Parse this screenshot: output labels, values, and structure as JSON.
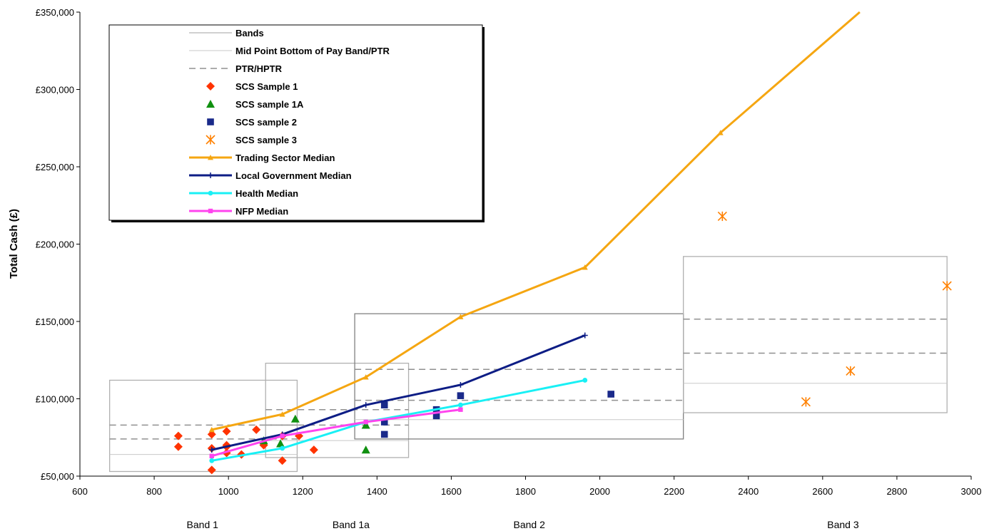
{
  "chart_data": {
    "type": "scatter",
    "ylabel": "Total Cash (£)",
    "xlabel": "",
    "xlim": [
      600,
      3000
    ],
    "ylim": [
      50000,
      350000
    ],
    "x_ticks": [
      600,
      800,
      1000,
      1200,
      1400,
      1600,
      1800,
      2000,
      2200,
      2400,
      2600,
      2800,
      3000
    ],
    "y_ticks": [
      50000,
      100000,
      150000,
      200000,
      250000,
      300000,
      350000
    ],
    "y_tick_labels": [
      "£50,000",
      "£100,000",
      "£150,000",
      "£200,000",
      "£250,000",
      "£300,000",
      "£350,000"
    ],
    "grid": false,
    "legend_position": "top-left",
    "band_labels": [
      {
        "label": "Band 1",
        "x": 930
      },
      {
        "label": "Band 1a",
        "x": 1330
      },
      {
        "label": "Band 2",
        "x": 1810
      },
      {
        "label": "Band 3",
        "x": 2655
      }
    ],
    "bands": [
      {
        "name": "Band 1",
        "x0": 680,
        "x1": 1185,
        "y0": 53000,
        "y1": 112000,
        "mid": 64000,
        "ptr": [
          74000,
          83000
        ],
        "color": "#b0b0b0"
      },
      {
        "name": "Band 1a",
        "x0": 1100,
        "x1": 1485,
        "y0": 62000,
        "y1": 123000,
        "mid": 73000,
        "ptr": [
          83000,
          93000
        ],
        "color": "#b0b0b0"
      },
      {
        "name": "Band 2",
        "x0": 1340,
        "x1": 2225,
        "y0": 74000,
        "y1": 155000,
        "mid": 86500,
        "ptr": [
          99000,
          119000
        ],
        "color": "#808080"
      },
      {
        "name": "Band 3",
        "x0": 2225,
        "x1": 2935,
        "y0": 91000,
        "y1": 192000,
        "mid": 110000,
        "ptr": [
          129500,
          151500
        ],
        "color": "#b0b0b0"
      }
    ],
    "series": [
      {
        "name": "Bands",
        "kind": "line",
        "color": "#a0a0a0",
        "width": 1,
        "dash": ""
      },
      {
        "name": "Mid Point Bottom of Pay Band/PTR",
        "kind": "line",
        "color": "#c8c8c8",
        "width": 1,
        "dash": ""
      },
      {
        "name": "PTR/HPTR",
        "kind": "line",
        "color": "#909090",
        "width": 1.5,
        "dash": "9,6"
      },
      {
        "name": "SCS Sample 1",
        "kind": "scatter",
        "marker": "diamond",
        "color": "#ff3300",
        "points": [
          [
            865,
            76000
          ],
          [
            865,
            69000
          ],
          [
            955,
            77000
          ],
          [
            955,
            68000
          ],
          [
            955,
            54000
          ],
          [
            995,
            79000
          ],
          [
            995,
            70000
          ],
          [
            995,
            65000
          ],
          [
            995,
            69000
          ],
          [
            1035,
            64000
          ],
          [
            1075,
            80000
          ],
          [
            1095,
            70000
          ],
          [
            1145,
            60000
          ],
          [
            1145,
            76000
          ],
          [
            1190,
            76000
          ],
          [
            1230,
            67000
          ]
        ]
      },
      {
        "name": "SCS sample 1A",
        "kind": "scatter",
        "marker": "triangle",
        "color": "#109010",
        "points": [
          [
            1095,
            73000
          ],
          [
            1140,
            71000
          ],
          [
            1180,
            87000
          ],
          [
            1370,
            83000
          ],
          [
            1370,
            67000
          ]
        ]
      },
      {
        "name": "SCS sample 2",
        "kind": "scatter",
        "marker": "square",
        "color": "#1a2a8a",
        "points": [
          [
            1420,
            96000
          ],
          [
            1420,
            85000
          ],
          [
            1420,
            77000
          ],
          [
            1560,
            93000
          ],
          [
            1560,
            89000
          ],
          [
            1625,
            102000
          ],
          [
            2030,
            103000
          ]
        ]
      },
      {
        "name": "SCS sample 3",
        "kind": "scatter",
        "marker": "star",
        "color": "#ff8000",
        "points": [
          [
            2330,
            218000
          ],
          [
            2555,
            98000
          ],
          [
            2675,
            118000
          ],
          [
            2935,
            173000
          ]
        ]
      },
      {
        "name": "Trading Sector Median",
        "kind": "line-marker",
        "marker": "triangle",
        "color": "#f5a611",
        "width": 3,
        "points": [
          [
            955,
            80000
          ],
          [
            1145,
            90000
          ],
          [
            1370,
            114000
          ],
          [
            1625,
            153000
          ],
          [
            1960,
            185000
          ],
          [
            2325,
            272000
          ],
          [
            2700,
            350000
          ]
        ]
      },
      {
        "name": "Local Government Median",
        "kind": "line-marker",
        "marker": "plus",
        "color": "#0d1d85",
        "width": 3,
        "points": [
          [
            955,
            67000
          ],
          [
            1145,
            77000
          ],
          [
            1370,
            96000
          ],
          [
            1625,
            109000
          ],
          [
            1960,
            141000
          ]
        ]
      },
      {
        "name": "Health Median",
        "kind": "line-marker",
        "marker": "circle",
        "color": "#19f0f5",
        "width": 3,
        "points": [
          [
            955,
            60000
          ],
          [
            1145,
            68000
          ],
          [
            1370,
            85000
          ],
          [
            1625,
            96000
          ],
          [
            1960,
            112000
          ]
        ]
      },
      {
        "name": "NFP Median",
        "kind": "line-marker",
        "marker": "square",
        "color": "#ff44ee",
        "width": 3,
        "points": [
          [
            955,
            63000
          ],
          [
            1145,
            76000
          ],
          [
            1370,
            85000
          ],
          [
            1625,
            93000
          ]
        ]
      }
    ]
  }
}
